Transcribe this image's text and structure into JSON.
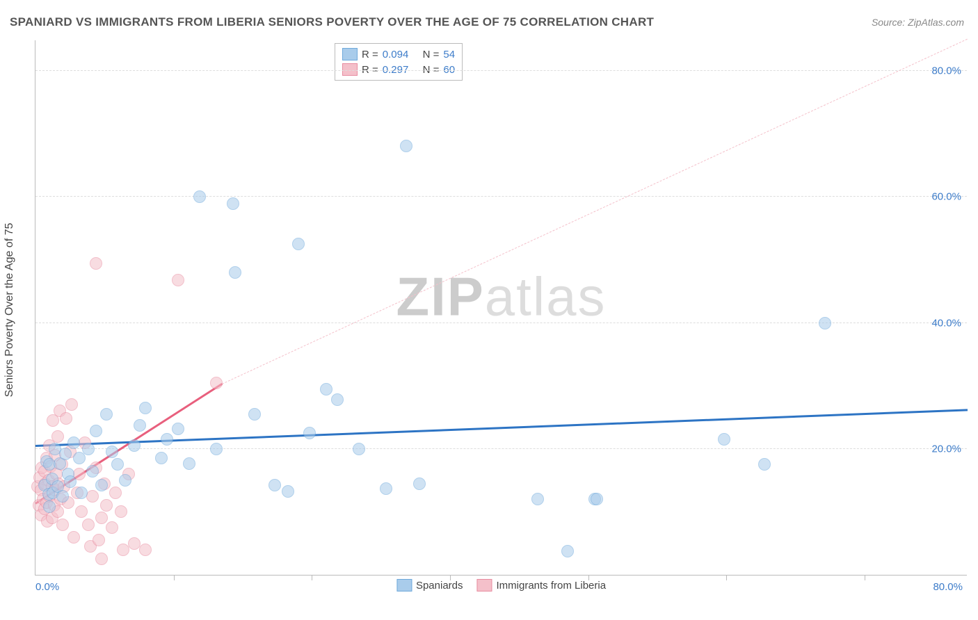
{
  "title": "SPANIARD VS IMMIGRANTS FROM LIBERIA SENIORS POVERTY OVER THE AGE OF 75 CORRELATION CHART",
  "source_prefix": "Source: ",
  "source_name": "ZipAtlas.com",
  "yaxis_title": "Seniors Poverty Over the Age of 75",
  "watermark": {
    "zip": "ZIP",
    "rest": "atlas"
  },
  "chart": {
    "type": "scatter",
    "background_color": "#ffffff",
    "grid_color": "#dddddd",
    "axis_color": "#bbbbbb",
    "point_radius": 9,
    "point_opacity": 0.55,
    "xlim": [
      0,
      85
    ],
    "ylim": [
      0,
      85
    ],
    "y_ticks": [
      20,
      40,
      60,
      80
    ],
    "y_tick_labels": [
      "20.0%",
      "40.0%",
      "60.0%",
      "80.0%"
    ],
    "x_ticks_minor": [
      12.6,
      25.2,
      37.8,
      50.4,
      63,
      75.6
    ],
    "x_origin_label": "0.0%",
    "x_max_label": "80.0%",
    "y_tick_label_color": "#3d7cc9",
    "y_tick_label_fontsize": 15,
    "series": [
      {
        "name": "Spaniards",
        "fill_color": "#a9cceb",
        "stroke_color": "#6fa9db",
        "trend": {
          "color": "#2d74c4",
          "width": 3,
          "dash": "solid",
          "x1": 0,
          "y1": 20.3,
          "x2": 85,
          "y2": 26.0
        },
        "R": "0.094",
        "N": "54",
        "points": [
          [
            0.8,
            14.2
          ],
          [
            1.0,
            18.0
          ],
          [
            1.2,
            12.8
          ],
          [
            1.3,
            17.5
          ],
          [
            1.3,
            10.8
          ],
          [
            1.5,
            15.2
          ],
          [
            1.6,
            13.0
          ],
          [
            1.8,
            20.0
          ],
          [
            2.0,
            14.0
          ],
          [
            2.2,
            17.7
          ],
          [
            2.5,
            12.5
          ],
          [
            2.7,
            19.2
          ],
          [
            3.0,
            16.0
          ],
          [
            3.2,
            14.8
          ],
          [
            3.5,
            21.0
          ],
          [
            4.0,
            18.5
          ],
          [
            4.2,
            13.0
          ],
          [
            4.8,
            20.0
          ],
          [
            5.2,
            16.5
          ],
          [
            5.5,
            22.8
          ],
          [
            6.0,
            14.2
          ],
          [
            6.5,
            25.5
          ],
          [
            7.0,
            19.5
          ],
          [
            7.5,
            17.5
          ],
          [
            8.2,
            15.0
          ],
          [
            9.0,
            20.5
          ],
          [
            9.5,
            23.7
          ],
          [
            10.0,
            26.5
          ],
          [
            11.5,
            18.5
          ],
          [
            12.0,
            21.5
          ],
          [
            13.0,
            23.2
          ],
          [
            14.0,
            17.7
          ],
          [
            15.0,
            60.0
          ],
          [
            16.5,
            20.0
          ],
          [
            18.0,
            59.0
          ],
          [
            18.2,
            48.0
          ],
          [
            20.0,
            25.5
          ],
          [
            21.8,
            14.2
          ],
          [
            23.0,
            13.2
          ],
          [
            24.0,
            52.5
          ],
          [
            25.0,
            22.5
          ],
          [
            26.5,
            29.5
          ],
          [
            27.5,
            27.8
          ],
          [
            29.5,
            20.0
          ],
          [
            32.0,
            13.7
          ],
          [
            33.8,
            68.1
          ],
          [
            35.0,
            14.5
          ],
          [
            45.8,
            12.0
          ],
          [
            48.5,
            3.8
          ],
          [
            51.0,
            12.0
          ],
          [
            51.2,
            12.0
          ],
          [
            62.8,
            21.5
          ],
          [
            66.5,
            17.5
          ],
          [
            72.0,
            40.0
          ]
        ]
      },
      {
        "name": "Immigrants from Liberia",
        "fill_color": "#f4c0ca",
        "stroke_color": "#e88ca0",
        "trend": {
          "color": "#e85f7d",
          "width": 3,
          "dash": "solid",
          "x1": 0,
          "y1": 11.2,
          "x2": 17,
          "y2": 30.2
        },
        "trend_ext": {
          "color": "#f4c0ca",
          "width": 1.5,
          "dash": "6,5",
          "x1": 17,
          "y1": 30.2,
          "x2": 85,
          "y2": 85
        },
        "R": "0.297",
        "N": "60",
        "points": [
          [
            0.2,
            14.0
          ],
          [
            0.3,
            11.0
          ],
          [
            0.4,
            15.5
          ],
          [
            0.5,
            13.5
          ],
          [
            0.5,
            9.5
          ],
          [
            0.6,
            17.0
          ],
          [
            0.7,
            12.0
          ],
          [
            0.8,
            16.5
          ],
          [
            0.8,
            10.5
          ],
          [
            0.9,
            14.5
          ],
          [
            1.0,
            18.5
          ],
          [
            1.0,
            11.5
          ],
          [
            1.1,
            8.5
          ],
          [
            1.2,
            15.0
          ],
          [
            1.3,
            20.5
          ],
          [
            1.3,
            12.5
          ],
          [
            1.4,
            17.2
          ],
          [
            1.5,
            9.0
          ],
          [
            1.5,
            14.0
          ],
          [
            1.6,
            24.5
          ],
          [
            1.7,
            11.0
          ],
          [
            1.8,
            13.5
          ],
          [
            1.8,
            19.0
          ],
          [
            1.9,
            16.0
          ],
          [
            2.0,
            10.0
          ],
          [
            2.0,
            22.0
          ],
          [
            2.1,
            14.5
          ],
          [
            2.2,
            26.0
          ],
          [
            2.3,
            12.0
          ],
          [
            2.4,
            17.5
          ],
          [
            2.5,
            8.0
          ],
          [
            2.6,
            14.0
          ],
          [
            2.8,
            24.8
          ],
          [
            3.0,
            11.5
          ],
          [
            3.2,
            19.5
          ],
          [
            3.3,
            27.0
          ],
          [
            3.5,
            6.0
          ],
          [
            3.8,
            13.0
          ],
          [
            4.0,
            16.0
          ],
          [
            4.2,
            10.0
          ],
          [
            4.5,
            21.0
          ],
          [
            4.8,
            8.0
          ],
          [
            5.0,
            4.5
          ],
          [
            5.2,
            12.5
          ],
          [
            5.5,
            17.0
          ],
          [
            5.8,
            5.5
          ],
          [
            5.5,
            49.5
          ],
          [
            6.0,
            9.0
          ],
          [
            6.3,
            14.5
          ],
          [
            6.5,
            11.0
          ],
          [
            6.0,
            2.5
          ],
          [
            7.0,
            7.5
          ],
          [
            7.3,
            13.0
          ],
          [
            7.8,
            10.0
          ],
          [
            8.0,
            4.0
          ],
          [
            8.5,
            16.0
          ],
          [
            9.0,
            5.0
          ],
          [
            10.0,
            4.0
          ],
          [
            13.0,
            46.8
          ],
          [
            16.5,
            30.5
          ]
        ]
      }
    ]
  },
  "legend_top": {
    "r_label": "R =",
    "n_label": "N ="
  },
  "series_legend_label_a": "Spaniards",
  "series_legend_label_b": "Immigrants from Liberia"
}
